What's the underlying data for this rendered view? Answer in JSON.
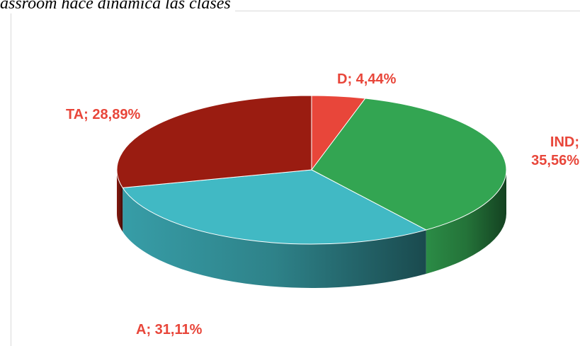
{
  "chart_data": {
    "type": "pie3d",
    "title": "assroom hace dinámica las clases",
    "values": [
      4.44,
      35.56,
      31.11,
      28.89
    ],
    "value_labels": [
      "D; 4,44%",
      "IND; 35,56%",
      "A; 31,11%",
      "TA; 28,89%"
    ],
    "colors": [
      "#e8463a",
      "#33a552",
      "#41b9c4",
      "#9a1c11"
    ],
    "label_color": "#e8463a"
  }
}
